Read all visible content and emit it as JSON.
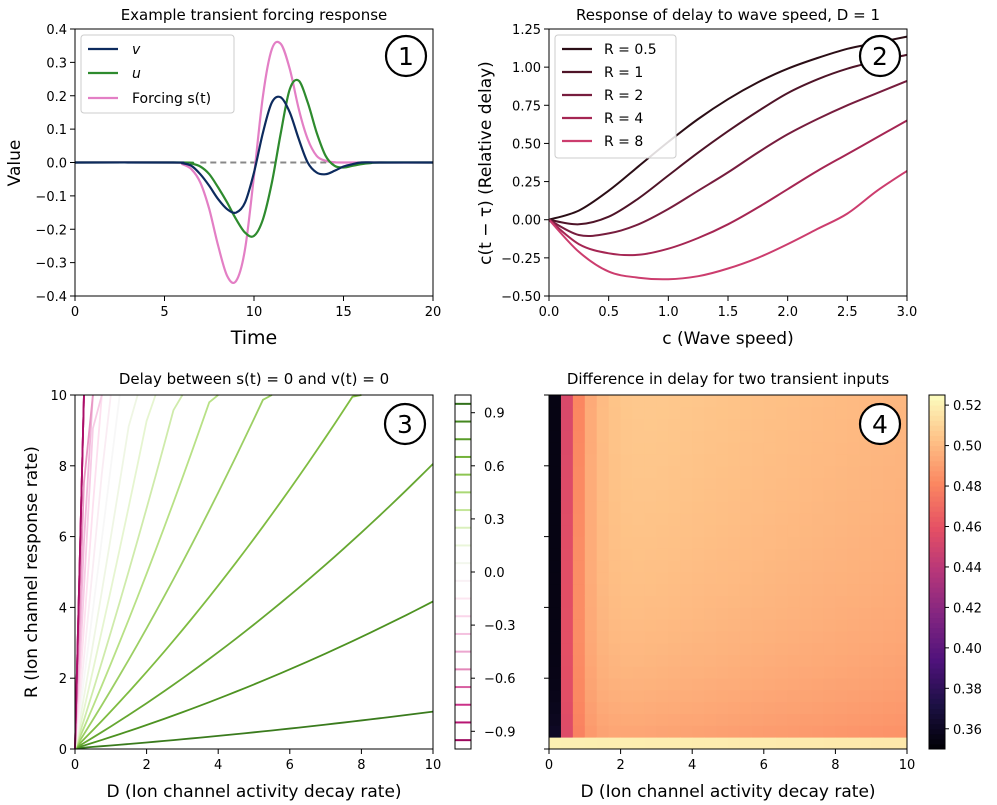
{
  "chart_data": [
    {
      "panel": "1",
      "type": "line",
      "title": "Example transient forcing response",
      "xlabel": "Time",
      "ylabel": "Value",
      "xlim": [
        0,
        20
      ],
      "ylim": [
        -0.4,
        0.4
      ],
      "xticks": [
        "0",
        "5",
        "10",
        "15",
        "20"
      ],
      "yticks": [
        "−0.4",
        "−0.3",
        "−0.2",
        "−0.1",
        "0.0",
        "0.1",
        "0.2",
        "0.3",
        "0.4"
      ],
      "legend_position": "upper-left",
      "reference_line": {
        "y": 0.0,
        "x_from": 7,
        "x_to": 15,
        "style": "dashed",
        "color": "#888888"
      },
      "series": [
        {
          "name": "v",
          "color": "#0d2b5e",
          "x": [
            0,
            5.5,
            6,
            6.5,
            7,
            7.5,
            8,
            8.5,
            9,
            9.5,
            10,
            10.5,
            11,
            11.5,
            12,
            12.5,
            13,
            13.5,
            14,
            14.5,
            15,
            15.5,
            16,
            17,
            20
          ],
          "y": [
            0,
            0,
            -0.002,
            -0.01,
            -0.035,
            -0.07,
            -0.11,
            -0.14,
            -0.15,
            -0.12,
            -0.03,
            0.09,
            0.18,
            0.195,
            0.15,
            0.07,
            0.0,
            -0.03,
            -0.035,
            -0.025,
            -0.012,
            -0.005,
            0,
            0,
            0
          ]
        },
        {
          "name": "u",
          "color": "#2e8b2e",
          "x": [
            0,
            6,
            6.5,
            7,
            7.5,
            8,
            8.5,
            9,
            9.5,
            10,
            10.5,
            11,
            11.5,
            12,
            12.5,
            13,
            13.5,
            14,
            14.5,
            15,
            15.5,
            16,
            16.5,
            17,
            20
          ],
          "y": [
            0,
            0,
            -0.003,
            -0.012,
            -0.035,
            -0.075,
            -0.12,
            -0.17,
            -0.21,
            -0.22,
            -0.17,
            -0.06,
            0.09,
            0.22,
            0.245,
            0.18,
            0.09,
            0.02,
            -0.01,
            -0.015,
            -0.01,
            -0.005,
            -0.002,
            0,
            0
          ]
        },
        {
          "name": "Forcing s(t)",
          "color": "#e37fc5",
          "x": [
            0,
            5.5,
            6,
            6.5,
            7,
            7.5,
            8,
            8.5,
            9,
            9.5,
            10,
            10.5,
            11,
            11.5,
            12,
            12.5,
            13,
            13.5,
            14,
            14.5,
            15,
            20
          ],
          "y": [
            0,
            0,
            -0.005,
            -0.02,
            -0.06,
            -0.14,
            -0.25,
            -0.34,
            -0.355,
            -0.26,
            -0.04,
            0.2,
            0.34,
            0.355,
            0.28,
            0.16,
            0.07,
            0.02,
            0.005,
            0.001,
            0,
            0
          ]
        }
      ]
    },
    {
      "panel": "2",
      "type": "line",
      "title": "Response of delay to wave speed, D = 1",
      "xlabel": "c (Wave speed)",
      "ylabel": "c(t − τ) (Relative delay)",
      "xlim": [
        0,
        3
      ],
      "ylim": [
        -0.5,
        1.25
      ],
      "xticks": [
        "0.0",
        "0.5",
        "1.0",
        "1.5",
        "2.0",
        "2.5",
        "3.0"
      ],
      "yticks": [
        "−0.50",
        "−0.25",
        "0.00",
        "0.25",
        "0.50",
        "0.75",
        "1.00",
        "1.25"
      ],
      "legend_position": "upper-left",
      "x": [
        0,
        0.25,
        0.5,
        0.75,
        1.0,
        1.25,
        1.5,
        1.75,
        2.0,
        2.25,
        2.5,
        2.75,
        3.0
      ],
      "series": [
        {
          "name": "R = 0.5",
          "color": "#2b0e16",
          "values": [
            0.0,
            0.06,
            0.19,
            0.35,
            0.51,
            0.66,
            0.79,
            0.9,
            0.99,
            1.06,
            1.12,
            1.16,
            1.2
          ]
        },
        {
          "name": "R = 1",
          "color": "#4f1428",
          "values": [
            0.0,
            -0.03,
            0.02,
            0.14,
            0.29,
            0.44,
            0.58,
            0.71,
            0.83,
            0.92,
            0.99,
            1.04,
            1.08
          ]
        },
        {
          "name": "R = 2",
          "color": "#771d3e",
          "values": [
            0.0,
            -0.1,
            -0.09,
            -0.03,
            0.07,
            0.19,
            0.31,
            0.44,
            0.56,
            0.66,
            0.75,
            0.83,
            0.91
          ]
        },
        {
          "name": "R = 4",
          "color": "#a52653",
          "values": [
            0.0,
            -0.16,
            -0.22,
            -0.23,
            -0.19,
            -0.12,
            -0.03,
            0.08,
            0.2,
            0.32,
            0.43,
            0.54,
            0.65
          ]
        },
        {
          "name": "R = 8",
          "color": "#cc3d6e",
          "values": [
            0.0,
            -0.21,
            -0.34,
            -0.38,
            -0.39,
            -0.37,
            -0.32,
            -0.25,
            -0.16,
            -0.06,
            0.04,
            0.19,
            0.32
          ]
        }
      ]
    },
    {
      "panel": "3",
      "type": "contour",
      "title": "Delay between s(t) = 0 and v(t) = 0",
      "xlabel": "D (Ion channel activity decay rate)",
      "ylabel": "R (Ion channel response rate)",
      "xlim": [
        0,
        10
      ],
      "ylim": [
        0,
        10
      ],
      "xticks": [
        "0",
        "2",
        "4",
        "6",
        "8",
        "10"
      ],
      "yticks": [
        "0",
        "2",
        "4",
        "6",
        "8",
        "10"
      ],
      "colorbar": {
        "min": -1.0,
        "max": 1.0,
        "colormap": "PiYG",
        "ticks": [
          "0.9",
          "0.6",
          "0.3",
          "0.0",
          "−0.3",
          "−0.6",
          "−0.9"
        ],
        "tick_values": [
          0.9,
          0.6,
          0.3,
          0.0,
          -0.3,
          -0.6,
          -0.9
        ]
      },
      "contours": [
        {
          "level": 0.9,
          "slope": 0.08
        },
        {
          "level": 0.8,
          "slope": 0.32
        },
        {
          "level": 0.7,
          "slope": 0.62
        },
        {
          "level": 0.6,
          "slope": 1.05
        },
        {
          "level": 0.5,
          "slope": 1.65
        },
        {
          "level": 0.4,
          "slope": 2.4
        },
        {
          "level": 0.3,
          "slope": 3.3
        },
        {
          "level": 0.2,
          "slope": 4.5
        },
        {
          "level": 0.1,
          "slope": 6.0
        },
        {
          "level": 0.0,
          "slope": 8.0
        },
        {
          "level": -0.1,
          "slope": 10.5
        },
        {
          "level": -0.2,
          "slope": 14.0
        },
        {
          "level": -0.3,
          "slope": 18.5
        },
        {
          "level": -0.4,
          "slope": 24.0
        },
        {
          "level": -0.5,
          "slope": 31.0
        },
        {
          "level": -0.6,
          "slope": 42.0
        },
        {
          "level": -0.7,
          "slope": 58.0
        },
        {
          "level": -0.8,
          "slope": 85.0
        },
        {
          "level": -0.9,
          "slope": 140.0
        }
      ]
    },
    {
      "panel": "4",
      "type": "heatmap",
      "title": "Difference in delay for two transient inputs",
      "xlabel": "D (Ion channel activity decay rate)",
      "ylabel": "",
      "xlim": [
        0,
        10
      ],
      "ylim": [
        0,
        10
      ],
      "xticks": [
        "0",
        "2",
        "4",
        "6",
        "8",
        "10"
      ],
      "grid_size": [
        30,
        30
      ],
      "colorbar": {
        "min": 0.35,
        "max": 0.525,
        "colormap": "magma",
        "ticks": [
          "0.52",
          "0.50",
          "0.48",
          "0.46",
          "0.44",
          "0.42",
          "0.40",
          "0.38",
          "0.36"
        ],
        "tick_values": [
          0.52,
          0.5,
          0.48,
          0.46,
          0.44,
          0.42,
          0.4,
          0.38,
          0.36
        ]
      }
    }
  ],
  "badges": [
    "1",
    "2",
    "3",
    "4"
  ]
}
